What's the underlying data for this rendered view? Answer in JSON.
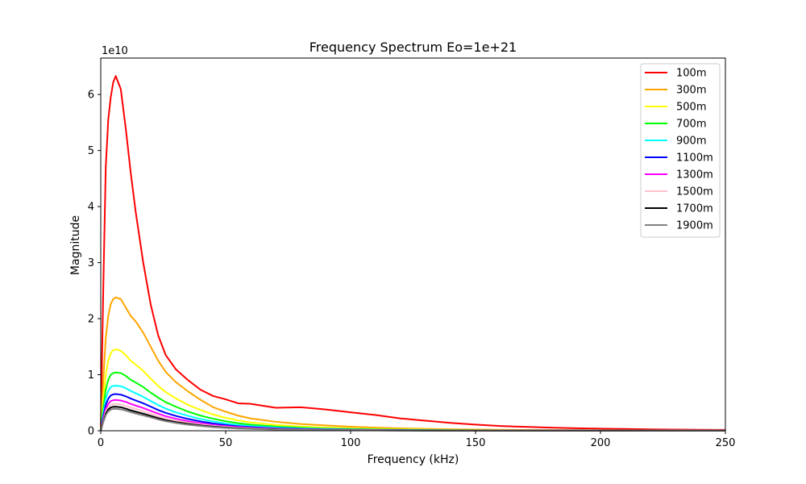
{
  "chart_data": {
    "type": "line",
    "title": "Frequency Spectrum  Eo=1e+21",
    "xlabel": "Frequency (kHz)",
    "ylabel": "Magnitude",
    "y_offset_label": "1e10",
    "xlim": [
      0,
      250
    ],
    "ylim": [
      0,
      66500000000
    ],
    "x_ticks": [
      0,
      50,
      100,
      150,
      200,
      250
    ],
    "y_ticks": [
      0,
      1,
      2,
      3,
      4,
      5,
      6
    ],
    "y_tick_scale": 10000000000,
    "grid": false,
    "legend_position": "top-right",
    "x": [
      0,
      1,
      2,
      3,
      4,
      5,
      6,
      8,
      10,
      12,
      14,
      17,
      20,
      23,
      26,
      30,
      35,
      40,
      45,
      50,
      55,
      60,
      70,
      80,
      90,
      100,
      110,
      120,
      130,
      140,
      150,
      160,
      170,
      180,
      190,
      200,
      210,
      220,
      230,
      240,
      250
    ],
    "series": [
      {
        "name": "100m",
        "color": "#ff0000",
        "values": [
          0,
          25000000000,
          47000000000,
          55500000000,
          59500000000,
          62200000000,
          63300000000,
          61000000000,
          54000000000,
          46000000000,
          39000000000,
          30000000000,
          22500000000,
          17000000000,
          13500000000,
          11000000000,
          9000000000,
          7300000000,
          6200000000,
          5600000000,
          4900000000,
          4800000000,
          4100000000,
          4200000000,
          3800000000,
          3300000000,
          2800000000,
          2200000000,
          1800000000,
          1400000000,
          1100000000,
          850000000,
          700000000,
          560000000,
          450000000,
          380000000,
          320000000,
          260000000,
          220000000,
          180000000,
          160000000
        ]
      },
      {
        "name": "300m",
        "color": "#ffa500",
        "values": [
          0,
          9000000000,
          16500000000,
          20500000000,
          22600000000,
          23500000000,
          23800000000,
          23500000000,
          22000000000,
          20500000000,
          19500000000,
          17500000000,
          15000000000,
          12500000000,
          10500000000,
          8700000000,
          7000000000,
          5500000000,
          4200000000,
          3400000000,
          2700000000,
          2200000000,
          1600000000,
          1200000000,
          950000000,
          720000000,
          560000000,
          430000000,
          340000000,
          270000000,
          220000000,
          180000000,
          150000000,
          120000000,
          100000000,
          90000000,
          80000000,
          70000000,
          60000000,
          55000000,
          50000000
        ]
      },
      {
        "name": "500m",
        "color": "#ffff00",
        "values": [
          0,
          5500000000,
          10000000000,
          12500000000,
          13800000000,
          14400000000,
          14500000000,
          14300000000,
          13500000000,
          12500000000,
          11800000000,
          10700000000,
          9300000000,
          8000000000,
          6900000000,
          5800000000,
          4600000000,
          3700000000,
          2900000000,
          2300000000,
          1850000000,
          1500000000,
          1050000000,
          760000000,
          560000000,
          420000000,
          320000000,
          250000000,
          200000000,
          160000000,
          130000000,
          110000000,
          90000000,
          75000000,
          65000000,
          55000000,
          48000000,
          42000000,
          38000000,
          34000000,
          30000000
        ]
      },
      {
        "name": "700m",
        "color": "#00ff00",
        "values": [
          0,
          4000000000,
          7300000000,
          9100000000,
          10000000000,
          10300000000,
          10400000000,
          10300000000,
          9800000000,
          9100000000,
          8600000000,
          7800000000,
          6800000000,
          5900000000,
          5100000000,
          4300000000,
          3400000000,
          2700000000,
          2150000000,
          1700000000,
          1350000000,
          1100000000,
          750000000,
          540000000,
          400000000,
          300000000,
          230000000,
          180000000,
          140000000,
          110000000,
          90000000,
          75000000,
          62000000,
          52000000,
          45000000,
          39000000,
          34000000,
          30000000,
          27000000,
          24000000,
          22000000
        ]
      },
      {
        "name": "900m",
        "color": "#00ffff",
        "values": [
          0,
          3100000000,
          5700000000,
          7100000000,
          7800000000,
          8000000000,
          8050000000,
          7950000000,
          7600000000,
          7100000000,
          6700000000,
          6050000000,
          5300000000,
          4600000000,
          3950000000,
          3300000000,
          2650000000,
          2100000000,
          1650000000,
          1300000000,
          1030000000,
          830000000,
          570000000,
          410000000,
          300000000,
          225000000,
          170000000,
          135000000,
          105000000,
          85000000,
          70000000,
          58000000,
          48000000,
          40000000,
          35000000,
          30000000,
          26000000,
          23000000,
          21000000,
          19000000,
          17000000
        ]
      },
      {
        "name": "1100m",
        "color": "#0000ff",
        "values": [
          0,
          2500000000,
          4600000000,
          5700000000,
          6300000000,
          6500000000,
          6550000000,
          6450000000,
          6150000000,
          5750000000,
          5400000000,
          4900000000,
          4300000000,
          3700000000,
          3200000000,
          2650000000,
          2100000000,
          1650000000,
          1300000000,
          1020000000,
          800000000,
          650000000,
          440000000,
          320000000,
          235000000,
          175000000,
          135000000,
          105000000,
          82000000,
          66000000,
          54000000,
          45000000,
          38000000,
          32000000,
          27000000,
          23000000,
          20000000,
          18000000,
          16000000,
          14000000,
          13000000
        ]
      },
      {
        "name": "1300m",
        "color": "#ff00ff",
        "values": [
          0,
          2100000000,
          3900000000,
          4800000000,
          5300000000,
          5450000000,
          5500000000,
          5400000000,
          5150000000,
          4800000000,
          4500000000,
          4050000000,
          3550000000,
          3050000000,
          2600000000,
          2150000000,
          1700000000,
          1330000000,
          1040000000,
          820000000,
          640000000,
          520000000,
          350000000,
          255000000,
          185000000,
          140000000,
          105000000,
          82000000,
          65000000,
          52000000,
          43000000,
          36000000,
          30000000,
          25000000,
          21000000,
          18000000,
          16000000,
          14000000,
          12500000,
          11000000,
          10000000
        ]
      },
      {
        "name": "1500m",
        "color": "#ffc0cb",
        "values": [
          0,
          1800000000,
          3400000000,
          4200000000,
          4600000000,
          4750000000,
          4800000000,
          4700000000,
          4450000000,
          4150000000,
          3900000000,
          3500000000,
          3050000000,
          2600000000,
          2200000000,
          1800000000,
          1430000000,
          1120000000,
          870000000,
          680000000,
          530000000,
          430000000,
          290000000,
          210000000,
          155000000,
          115000000,
          88000000,
          68000000,
          54000000,
          43000000,
          35000000,
          29000000,
          24000000,
          20000000,
          17000000,
          15000000,
          13000000,
          11500000,
          10000000,
          9000000,
          8000000
        ]
      },
      {
        "name": "1700m",
        "color": "#000000",
        "values": [
          0,
          1650000000,
          3050000000,
          3800000000,
          4150000000,
          4280000000,
          4300000000,
          4200000000,
          3950000000,
          3650000000,
          3400000000,
          3050000000,
          2650000000,
          2250000000,
          1900000000,
          1550000000,
          1220000000,
          950000000,
          740000000,
          580000000,
          450000000,
          360000000,
          245000000,
          175000000,
          130000000,
          96000000,
          74000000,
          57000000,
          45000000,
          36000000,
          29000000,
          24000000,
          20000000,
          17000000,
          14500000,
          12500000,
          11000000,
          9500000,
          8500000,
          7500000,
          7000000
        ]
      },
      {
        "name": "1900m",
        "color": "#808080",
        "values": [
          0,
          1500000000,
          2800000000,
          3450000000,
          3780000000,
          3900000000,
          3920000000,
          3820000000,
          3600000000,
          3320000000,
          3080000000,
          2750000000,
          2380000000,
          2020000000,
          1700000000,
          1380000000,
          1080000000,
          840000000,
          650000000,
          510000000,
          400000000,
          320000000,
          215000000,
          155000000,
          115000000,
          85000000,
          65000000,
          50000000,
          40000000,
          32000000,
          26000000,
          21000000,
          18000000,
          15000000,
          13000000,
          11000000,
          9800000,
          8500000,
          7500000,
          6700000,
          6000000
        ]
      }
    ]
  }
}
